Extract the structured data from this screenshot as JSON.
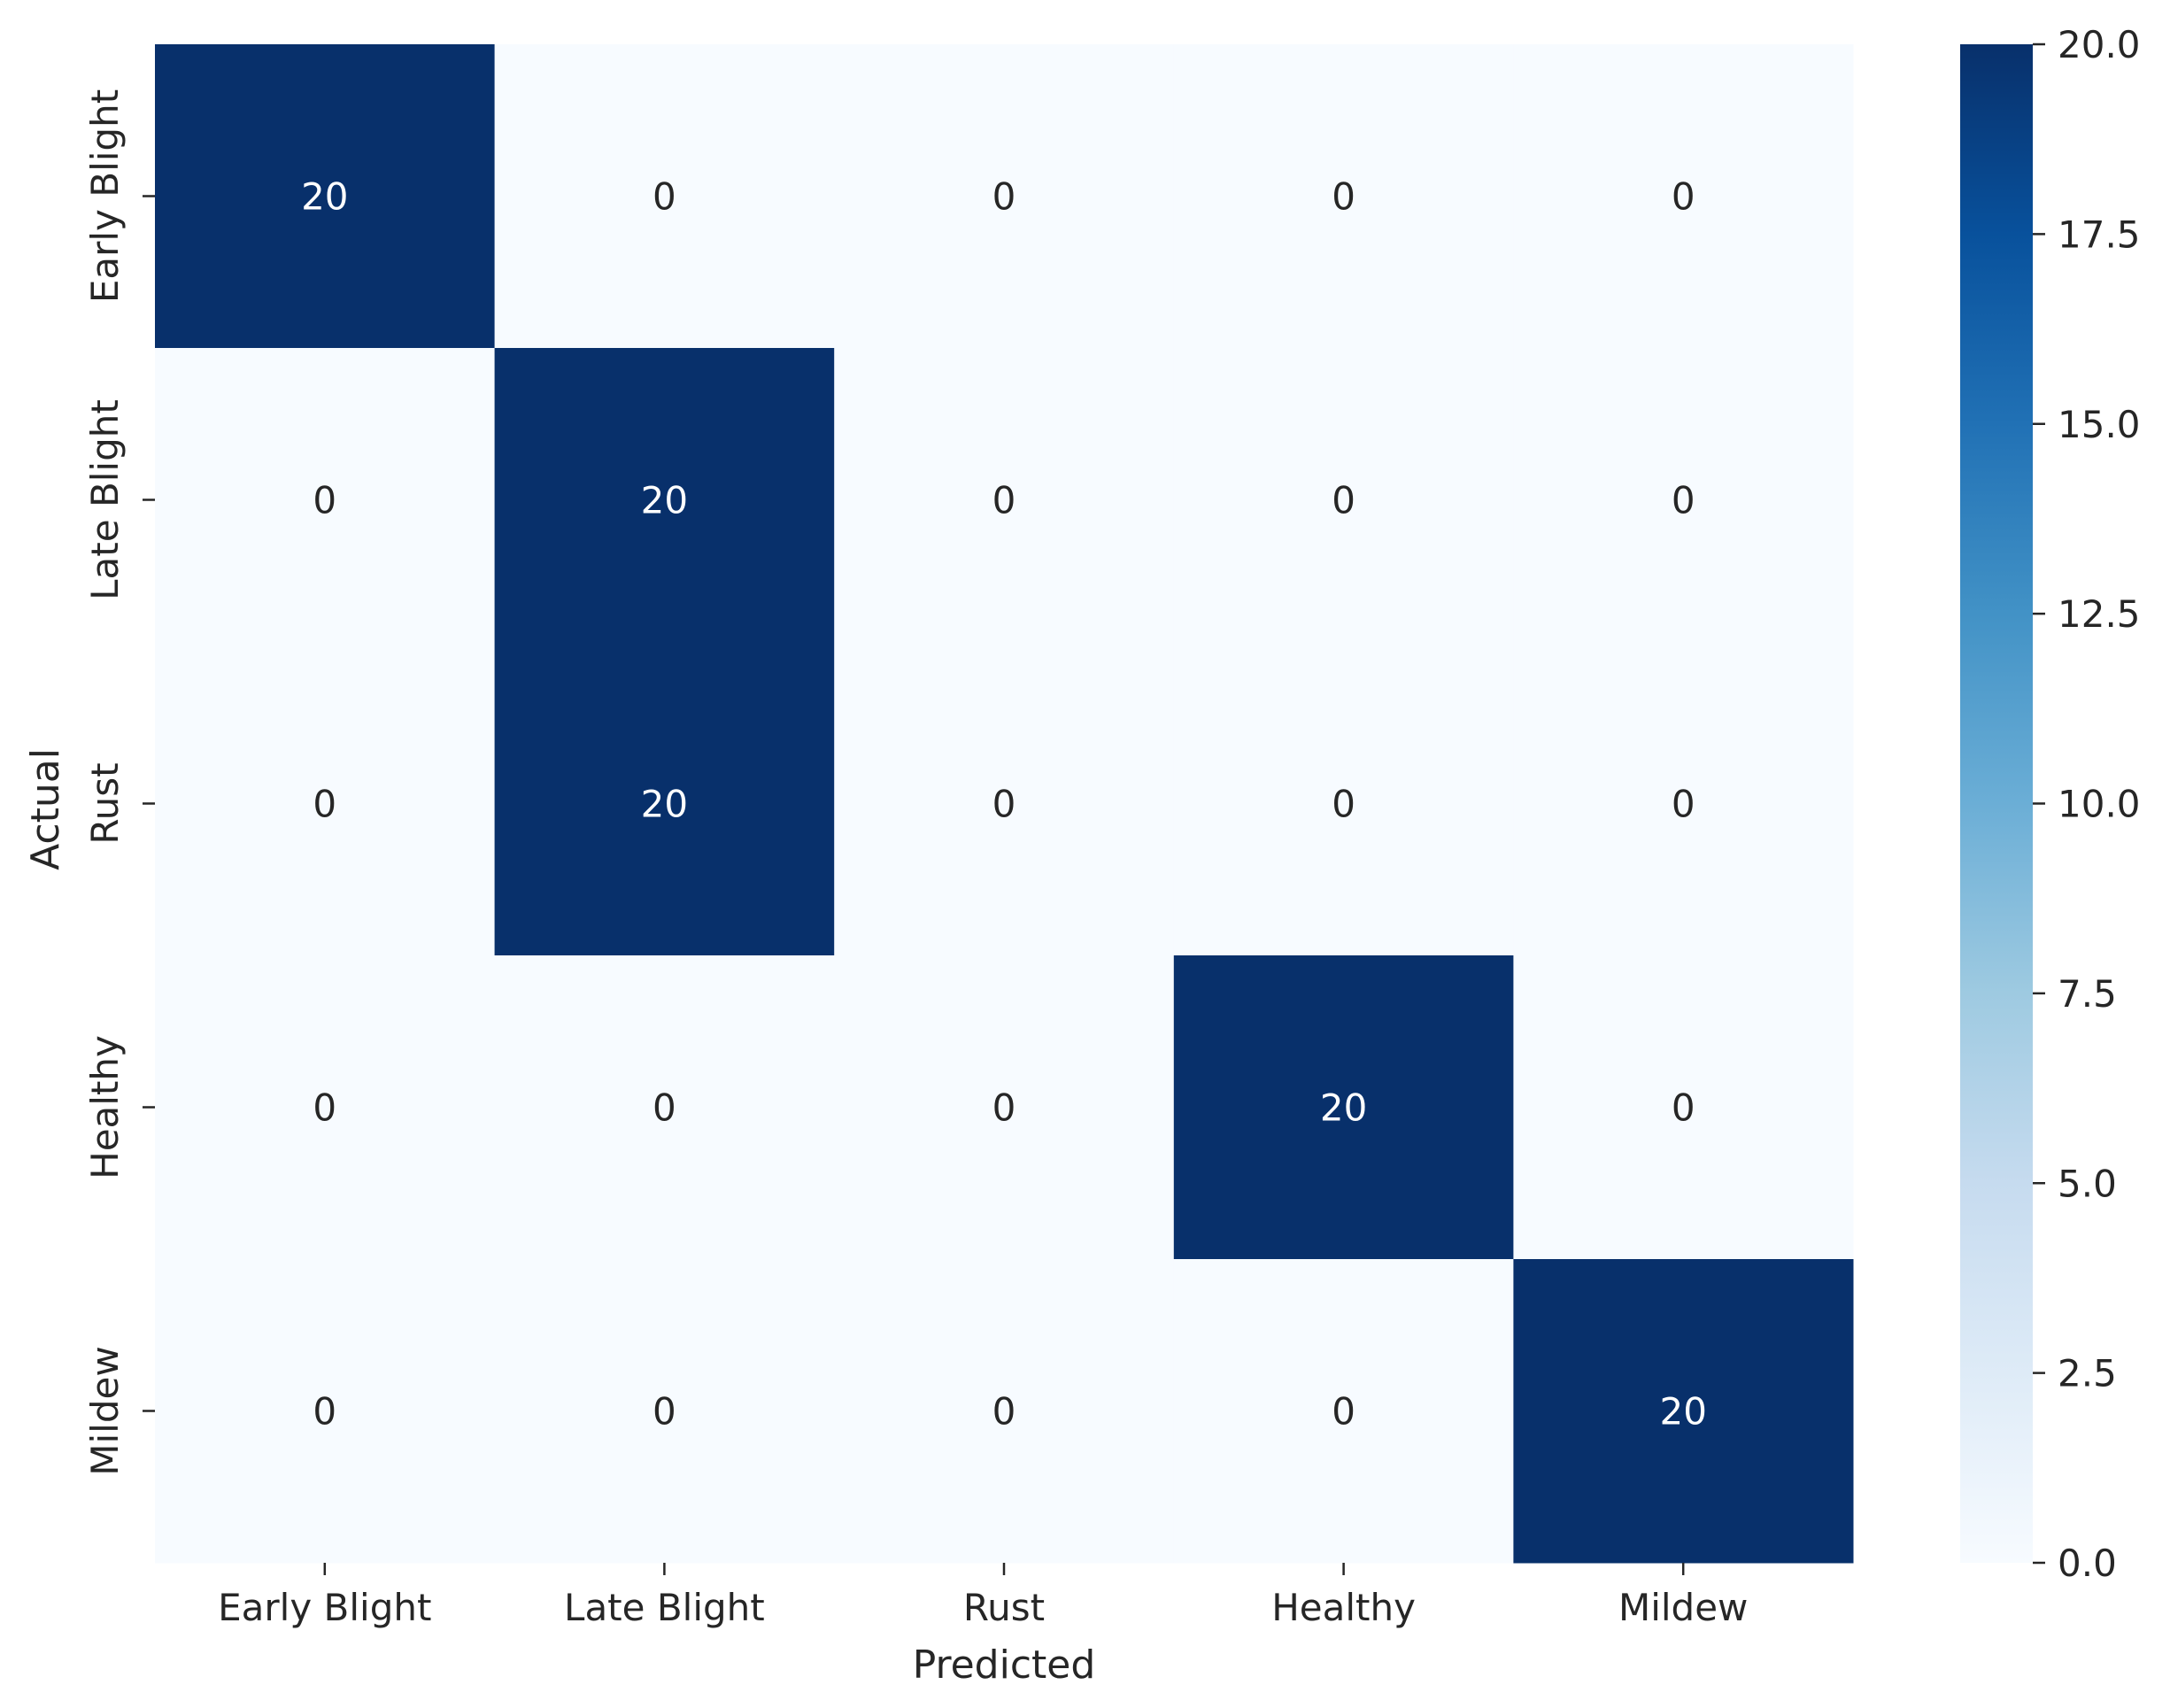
{
  "chart_data": {
    "type": "heatmap",
    "title": "",
    "xlabel": "Predicted",
    "ylabel": "Actual",
    "x_categories": [
      "Early Blight",
      "Late Blight",
      "Rust",
      "Healthy",
      "Mildew"
    ],
    "y_categories": [
      "Early Blight",
      "Late Blight",
      "Rust",
      "Healthy",
      "Mildew"
    ],
    "matrix": [
      [
        20,
        0,
        0,
        0,
        0
      ],
      [
        0,
        20,
        0,
        0,
        0
      ],
      [
        0,
        20,
        0,
        0,
        0
      ],
      [
        0,
        0,
        0,
        20,
        0
      ],
      [
        0,
        0,
        0,
        0,
        20
      ]
    ],
    "colorbar": {
      "min": 0.0,
      "max": 20.0,
      "ticks": [
        "0.0",
        "2.5",
        "5.0",
        "7.5",
        "10.0",
        "12.5",
        "15.0",
        "17.5",
        "20.0"
      ],
      "colormap": "Blues",
      "low_color": "#f7fbff",
      "high_color": "#08306b"
    },
    "annotation_colors": {
      "on_dark": "#ffffff",
      "on_light": "#262626"
    },
    "grid": false
  }
}
